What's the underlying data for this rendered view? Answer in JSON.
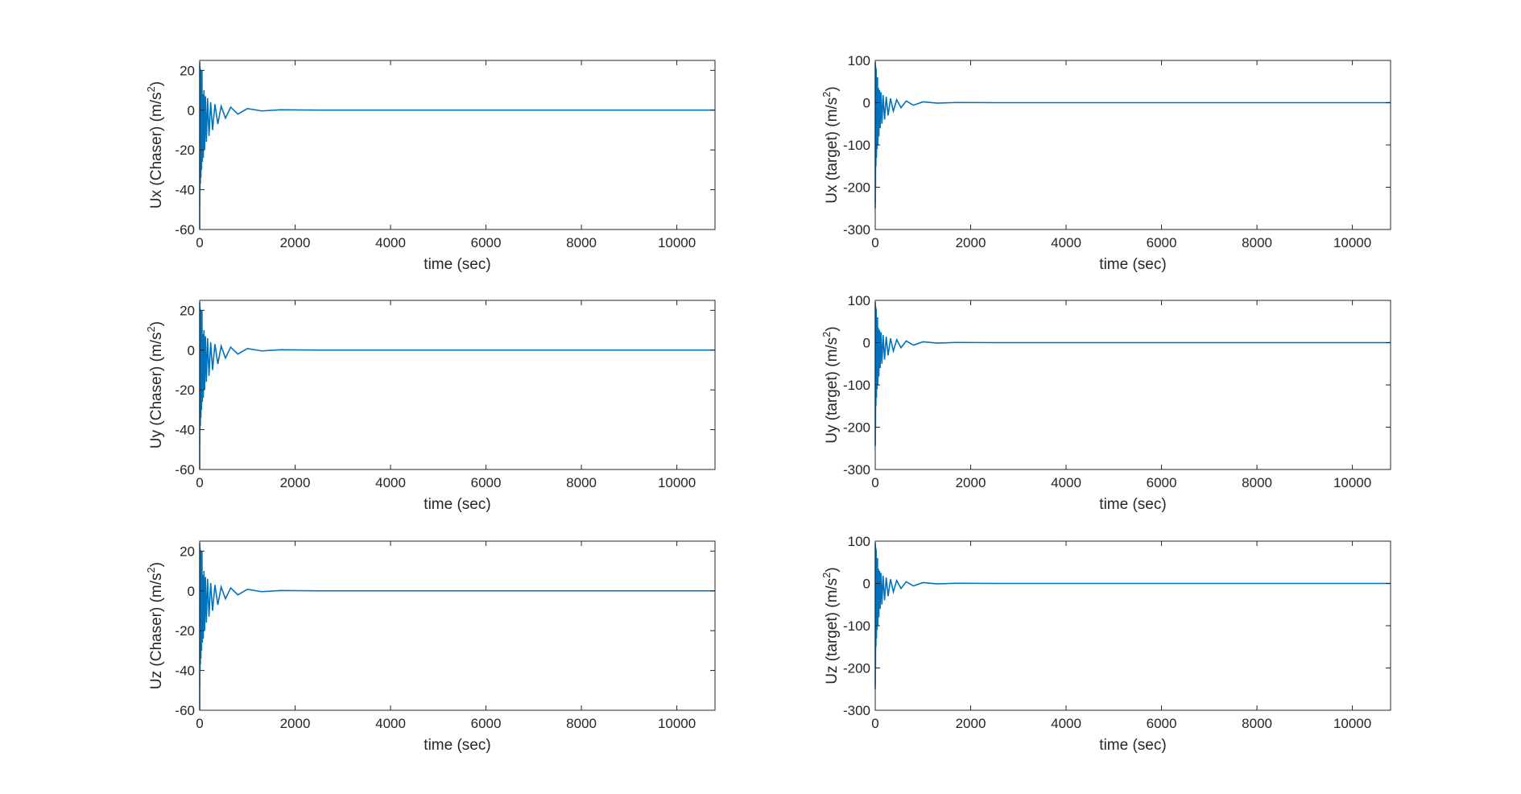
{
  "figure": {
    "line_color": "#0072BD",
    "axes_color": "#262626"
  },
  "chart_data": [
    {
      "type": "line",
      "id": "ux-chaser",
      "xlabel": "time (sec)",
      "ylabel_prefix": "Ux (Chaser) (m/s",
      "ylabel_sup": "2",
      "ylabel_suffix": ")",
      "xlim": [
        0,
        10800
      ],
      "ylim": [
        -60,
        25
      ],
      "xticks": [
        0,
        2000,
        4000,
        6000,
        8000,
        10000
      ],
      "xtick_labels": [
        "0",
        "2000",
        "4000",
        "6000",
        "8000",
        "10000"
      ],
      "yticks": [
        -60,
        -40,
        -20,
        0,
        20
      ],
      "ytick_labels": [
        "-60",
        "-40",
        "-20",
        "0",
        "20"
      ],
      "grid": false,
      "series": [
        {
          "x": [
            0,
            1,
            2,
            4,
            6,
            10,
            14,
            20,
            26,
            32,
            40,
            48,
            56,
            66,
            76,
            90,
            104,
            120,
            140,
            165,
            195,
            230,
            270,
            320,
            380,
            450,
            540,
            650,
            800,
            1000,
            1300,
            1700,
            2500,
            5000,
            10800
          ],
          "y": [
            -60,
            24,
            -48,
            22,
            -40,
            21,
            -37,
            20,
            -34,
            12,
            -30,
            20,
            -26,
            8,
            -24,
            10,
            -20,
            7,
            -16,
            6,
            -13,
            4,
            -10,
            3,
            -7,
            2,
            -4,
            1.5,
            -2,
            0.8,
            -0.4,
            0.2,
            0,
            0,
            0
          ]
        }
      ]
    },
    {
      "type": "line",
      "id": "ux-target",
      "xlabel": "time (sec)",
      "ylabel_prefix": "Ux (target) (m/s",
      "ylabel_sup": "2",
      "ylabel_suffix": ")",
      "xlim": [
        0,
        10800
      ],
      "ylim": [
        -300,
        100
      ],
      "xticks": [
        0,
        2000,
        4000,
        6000,
        8000,
        10000
      ],
      "xtick_labels": [
        "0",
        "2000",
        "4000",
        "6000",
        "8000",
        "10000"
      ],
      "yticks": [
        -300,
        -200,
        -100,
        0,
        100
      ],
      "ytick_labels": [
        "-300",
        "-200",
        "-100",
        "0",
        "100"
      ],
      "grid": false,
      "series": [
        {
          "x": [
            0,
            1,
            2,
            4,
            6,
            10,
            14,
            20,
            26,
            32,
            40,
            48,
            56,
            66,
            76,
            90,
            104,
            120,
            140,
            165,
            195,
            230,
            270,
            320,
            380,
            450,
            540,
            650,
            800,
            1000,
            1300,
            1700,
            2500,
            5000,
            10800
          ],
          "y": [
            -250,
            96,
            -240,
            90,
            -200,
            85,
            -150,
            80,
            -130,
            40,
            -110,
            60,
            -100,
            35,
            -80,
            30,
            -60,
            25,
            -50,
            18,
            -40,
            14,
            -30,
            10,
            -20,
            7,
            -12,
            4,
            -6,
            2,
            -1,
            0.5,
            0,
            0,
            0
          ]
        }
      ]
    },
    {
      "type": "line",
      "id": "uy-chaser",
      "xlabel": "time (sec)",
      "ylabel_prefix": "Uy (Chaser) (m/s",
      "ylabel_sup": "2",
      "ylabel_suffix": ")",
      "xlim": [
        0,
        10800
      ],
      "ylim": [
        -60,
        25
      ],
      "xticks": [
        0,
        2000,
        4000,
        6000,
        8000,
        10000
      ],
      "xtick_labels": [
        "0",
        "2000",
        "4000",
        "6000",
        "8000",
        "10000"
      ],
      "yticks": [
        -60,
        -40,
        -20,
        0,
        20
      ],
      "ytick_labels": [
        "-60",
        "-40",
        "-20",
        "0",
        "20"
      ],
      "grid": false,
      "series": [
        {
          "x": [
            0,
            1,
            2,
            4,
            6,
            10,
            14,
            20,
            26,
            32,
            40,
            48,
            56,
            66,
            76,
            90,
            104,
            120,
            140,
            165,
            195,
            230,
            270,
            320,
            380,
            450,
            540,
            650,
            800,
            1000,
            1300,
            1700,
            2500,
            5000,
            10800
          ],
          "y": [
            -60,
            24,
            -48,
            22,
            -40,
            21,
            -38,
            20,
            -34,
            12,
            -30,
            20,
            -26,
            8,
            -24,
            10,
            -20,
            7,
            -16,
            6,
            -13,
            4,
            -10,
            3,
            -7,
            2,
            -4,
            1.5,
            -2,
            0.8,
            -0.4,
            0.2,
            0,
            0,
            0
          ]
        }
      ]
    },
    {
      "type": "line",
      "id": "uy-target",
      "xlabel": "time (sec)",
      "ylabel_prefix": "Uy (target) (m/s",
      "ylabel_sup": "2",
      "ylabel_suffix": ")",
      "xlim": [
        0,
        10800
      ],
      "ylim": [
        -300,
        100
      ],
      "xticks": [
        0,
        2000,
        4000,
        6000,
        8000,
        10000
      ],
      "xtick_labels": [
        "0",
        "2000",
        "4000",
        "6000",
        "8000",
        "10000"
      ],
      "yticks": [
        -300,
        -200,
        -100,
        0,
        100
      ],
      "ytick_labels": [
        "-300",
        "-200",
        "-100",
        "0",
        "100"
      ],
      "grid": false,
      "series": [
        {
          "x": [
            0,
            1,
            2,
            4,
            6,
            10,
            14,
            20,
            26,
            32,
            40,
            48,
            56,
            66,
            76,
            90,
            104,
            120,
            140,
            165,
            195,
            230,
            270,
            320,
            380,
            450,
            540,
            650,
            800,
            1000,
            1300,
            1700,
            2500,
            5000,
            10800
          ],
          "y": [
            -245,
            96,
            -240,
            90,
            -200,
            85,
            -150,
            80,
            -130,
            40,
            -110,
            60,
            -100,
            35,
            -80,
            30,
            -60,
            25,
            -50,
            18,
            -40,
            14,
            -30,
            10,
            -20,
            7,
            -12,
            4,
            -6,
            2,
            -1,
            0.5,
            0,
            0,
            0
          ]
        }
      ]
    },
    {
      "type": "line",
      "id": "uz-chaser",
      "xlabel": "time (sec)",
      "ylabel_prefix": "Uz (Chaser) (m/s",
      "ylabel_sup": "2",
      "ylabel_suffix": ")",
      "xlim": [
        0,
        10800
      ],
      "ylim": [
        -60,
        25
      ],
      "xticks": [
        0,
        2000,
        4000,
        6000,
        8000,
        10000
      ],
      "xtick_labels": [
        "0",
        "2000",
        "4000",
        "6000",
        "8000",
        "10000"
      ],
      "yticks": [
        -60,
        -40,
        -20,
        0,
        20
      ],
      "ytick_labels": [
        "-60",
        "-40",
        "-20",
        "0",
        "20"
      ],
      "grid": false,
      "series": [
        {
          "x": [
            0,
            1,
            2,
            4,
            6,
            10,
            14,
            20,
            26,
            32,
            40,
            48,
            56,
            66,
            76,
            90,
            104,
            120,
            140,
            165,
            195,
            230,
            270,
            320,
            380,
            450,
            540,
            650,
            800,
            1000,
            1300,
            1700,
            2500,
            5000,
            10800
          ],
          "y": [
            -60,
            24,
            -48,
            22,
            -40,
            21,
            -37,
            20,
            -34,
            12,
            -30,
            20,
            -26,
            8,
            -24,
            10,
            -20,
            7,
            -16,
            6,
            -13,
            4,
            -10,
            3,
            -7,
            2,
            -4,
            1.5,
            -2,
            0.8,
            -0.4,
            0.2,
            0,
            0,
            0
          ]
        }
      ]
    },
    {
      "type": "line",
      "id": "uz-target",
      "xlabel": "time (sec)",
      "ylabel_prefix": "Uz (target) (m/s",
      "ylabel_sup": "2",
      "ylabel_suffix": ")",
      "xlim": [
        0,
        10800
      ],
      "ylim": [
        -300,
        100
      ],
      "xticks": [
        0,
        2000,
        4000,
        6000,
        8000,
        10000
      ],
      "xtick_labels": [
        "0",
        "2000",
        "4000",
        "6000",
        "8000",
        "10000"
      ],
      "yticks": [
        -300,
        -200,
        -100,
        0,
        100
      ],
      "ytick_labels": [
        "-300",
        "-200",
        "-100",
        "0",
        "100"
      ],
      "grid": false,
      "series": [
        {
          "x": [
            0,
            1,
            2,
            4,
            6,
            10,
            14,
            20,
            26,
            32,
            40,
            48,
            56,
            66,
            76,
            90,
            104,
            120,
            140,
            165,
            195,
            230,
            270,
            320,
            380,
            450,
            540,
            650,
            800,
            1000,
            1300,
            1700,
            2500,
            5000,
            10800
          ],
          "y": [
            -250,
            96,
            -240,
            90,
            -200,
            85,
            -150,
            80,
            -130,
            40,
            -110,
            60,
            -100,
            35,
            -80,
            30,
            -60,
            25,
            -50,
            18,
            -40,
            14,
            -30,
            10,
            -20,
            7,
            -12,
            4,
            -6,
            2,
            -1,
            0.5,
            0,
            0,
            0
          ]
        }
      ]
    }
  ]
}
